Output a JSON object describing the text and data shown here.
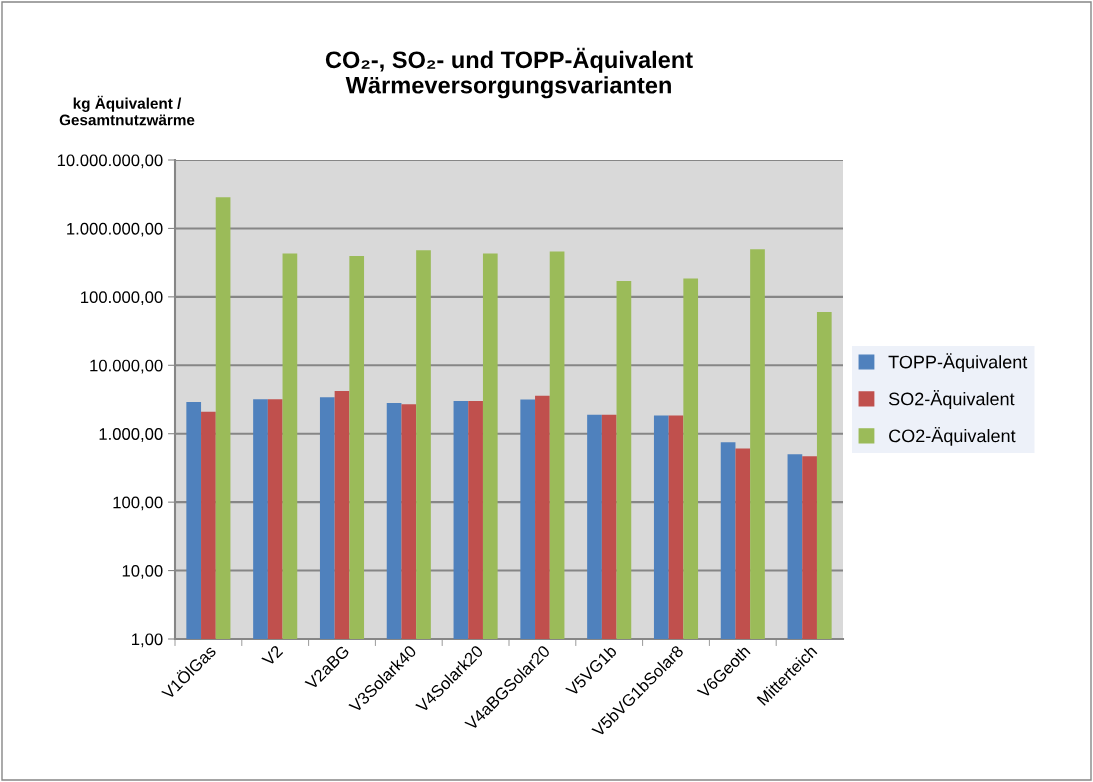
{
  "chart_data": {
    "type": "bar",
    "title": "CO₂-, SO₂- und TOPP-Äquivalent\nWärmeversorgungsvarianten",
    "ylabel": "kg Äquivalent /\nGesamtnutzwärme",
    "categories": [
      "V1ÖlGas",
      "V2",
      "V2aBG",
      "V3Solark40",
      "V4Solark20",
      "V4aBGSolar20",
      "V5VG1b",
      "V5bVG1bSolar8",
      "V6Geoth",
      "Mitterteich"
    ],
    "series": [
      {
        "name": "TOPP-Äquivalent",
        "color": "#4f81bd",
        "values": [
          2900,
          3200,
          3400,
          2800,
          3000,
          3150,
          1900,
          1850,
          750,
          500
        ]
      },
      {
        "name": "SO2-Äquivalent",
        "color": "#c0504d",
        "values": [
          2100,
          3200,
          4200,
          2700,
          3000,
          3600,
          1900,
          1850,
          610,
          470
        ]
      },
      {
        "name": "CO2-Äquivalent",
        "color": "#9bbb59",
        "values": [
          2850000,
          430000,
          395000,
          480000,
          430000,
          460000,
          170000,
          185000,
          495000,
          60000
        ]
      }
    ],
    "log": "y",
    "ylim": [
      1,
      10000000
    ],
    "yticks": [
      {
        "value": 1,
        "label": "1,00"
      },
      {
        "value": 10,
        "label": "10,00"
      },
      {
        "value": 100,
        "label": "100,00"
      },
      {
        "value": 1000,
        "label": "1.000,00"
      },
      {
        "value": 10000,
        "label": "10.000,00"
      },
      {
        "value": 100000,
        "label": "100.000,00"
      },
      {
        "value": 1000000,
        "label": "1.000.000,00"
      },
      {
        "value": 10000000,
        "label": "10.000.000,00"
      }
    ],
    "grid": "y",
    "legend": "right"
  }
}
